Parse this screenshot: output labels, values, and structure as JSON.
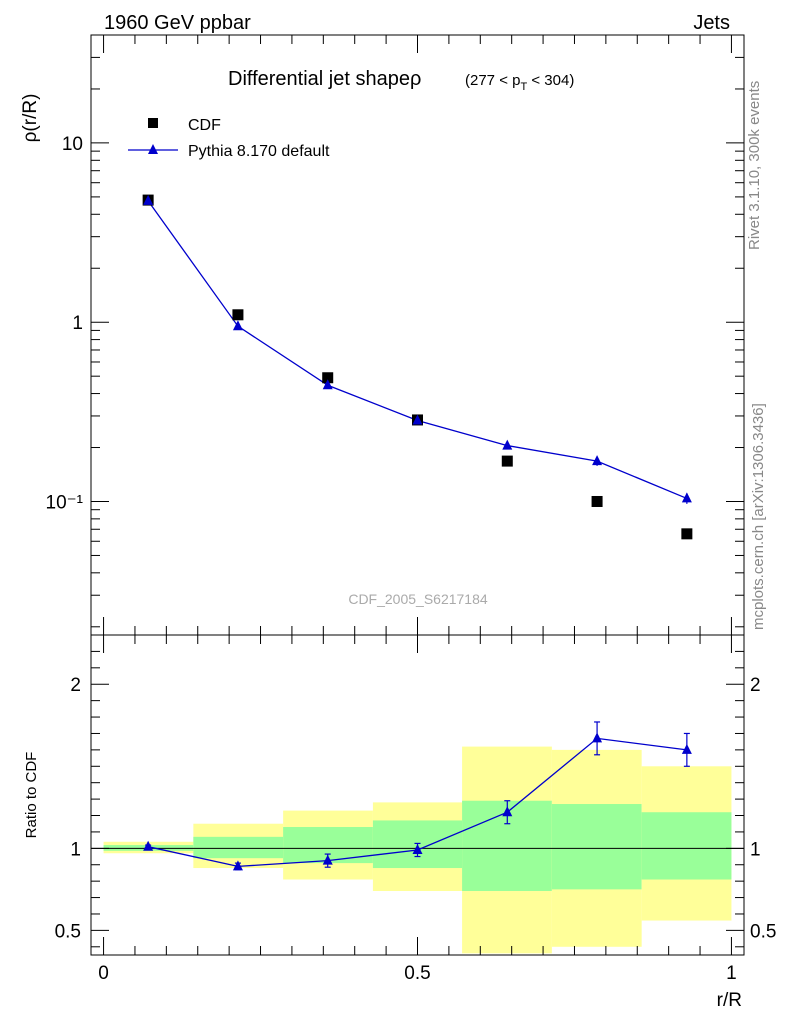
{
  "header": {
    "left": "1960 GeV ppbar",
    "right": "Jets"
  },
  "side_labels": {
    "upper": "Rivet 3.1.10,  300k events",
    "lower": "mcplots.cern.ch [arXiv:1306.3436]"
  },
  "watermark": "CDF_2005_S6217184",
  "chart_data": [
    {
      "type": "scatter",
      "title": "Differential jet shapeρ",
      "title_suffix": "(277 < p_T < 304)",
      "ylabel": "ρ(r/R)",
      "yscale": "log",
      "ylim": [
        0.018,
        40
      ],
      "xlim": [
        -0.02,
        1.02
      ],
      "ytick_labels": [
        "10",
        "1",
        "10⁻¹"
      ],
      "legend": [
        "CDF",
        "Pythia 8.170 default"
      ],
      "legend_position": "top-left",
      "series": [
        {
          "name": "CDF",
          "marker": "square",
          "color": "#000000",
          "x": [
            0.071,
            0.214,
            0.357,
            0.5,
            0.643,
            0.786,
            0.929
          ],
          "y": [
            4.8,
            1.1,
            0.49,
            0.285,
            0.168,
            0.1,
            0.066
          ]
        },
        {
          "name": "Pythia 8.170 default",
          "marker": "triangle",
          "color": "#0000cc",
          "x": [
            0.071,
            0.214,
            0.357,
            0.5,
            0.643,
            0.786,
            0.929
          ],
          "y": [
            4.75,
            0.95,
            0.445,
            0.283,
            0.205,
            0.168,
            0.104
          ],
          "err": [
            0.1,
            0.02,
            0.01,
            0.006,
            0.008,
            0.01,
            0.007
          ]
        }
      ]
    },
    {
      "type": "line",
      "ylabel": "Ratio to CDF",
      "xlabel": "r/R",
      "ylim": [
        0.35,
        2.3
      ],
      "xlim": [
        -0.02,
        1.02
      ],
      "xtick_labels": [
        "0",
        "0.5",
        "1"
      ],
      "ytick_labels": [
        "0.5",
        "1",
        "2"
      ],
      "bands": [
        {
          "x0": 0.0,
          "x1": 0.143,
          "yellow": [
            0.97,
            1.04
          ],
          "green": [
            0.985,
            1.02
          ]
        },
        {
          "x0": 0.143,
          "x1": 0.286,
          "yellow": [
            0.88,
            1.15
          ],
          "green": [
            0.94,
            1.07
          ]
        },
        {
          "x0": 0.286,
          "x1": 0.429,
          "yellow": [
            0.81,
            1.23
          ],
          "green": [
            0.91,
            1.13
          ]
        },
        {
          "x0": 0.429,
          "x1": 0.571,
          "yellow": [
            0.74,
            1.28
          ],
          "green": [
            0.88,
            1.17
          ]
        },
        {
          "x0": 0.571,
          "x1": 0.714,
          "yellow": [
            0.36,
            1.62
          ],
          "green": [
            0.74,
            1.29
          ]
        },
        {
          "x0": 0.714,
          "x1": 0.857,
          "yellow": [
            0.4,
            1.6
          ],
          "green": [
            0.75,
            1.27
          ]
        },
        {
          "x0": 0.857,
          "x1": 1.0,
          "yellow": [
            0.56,
            1.5
          ],
          "green": [
            0.81,
            1.22
          ]
        }
      ],
      "series": [
        {
          "name": "Pythia 8.170 default",
          "color": "#0000cc",
          "x": [
            0.071,
            0.214,
            0.357,
            0.5,
            0.643,
            0.786,
            0.929
          ],
          "y": [
            1.01,
            0.89,
            0.925,
            0.99,
            1.22,
            1.67,
            1.6
          ],
          "err": [
            0.01,
            0.02,
            0.04,
            0.04,
            0.07,
            0.1,
            0.1
          ]
        }
      ]
    }
  ]
}
